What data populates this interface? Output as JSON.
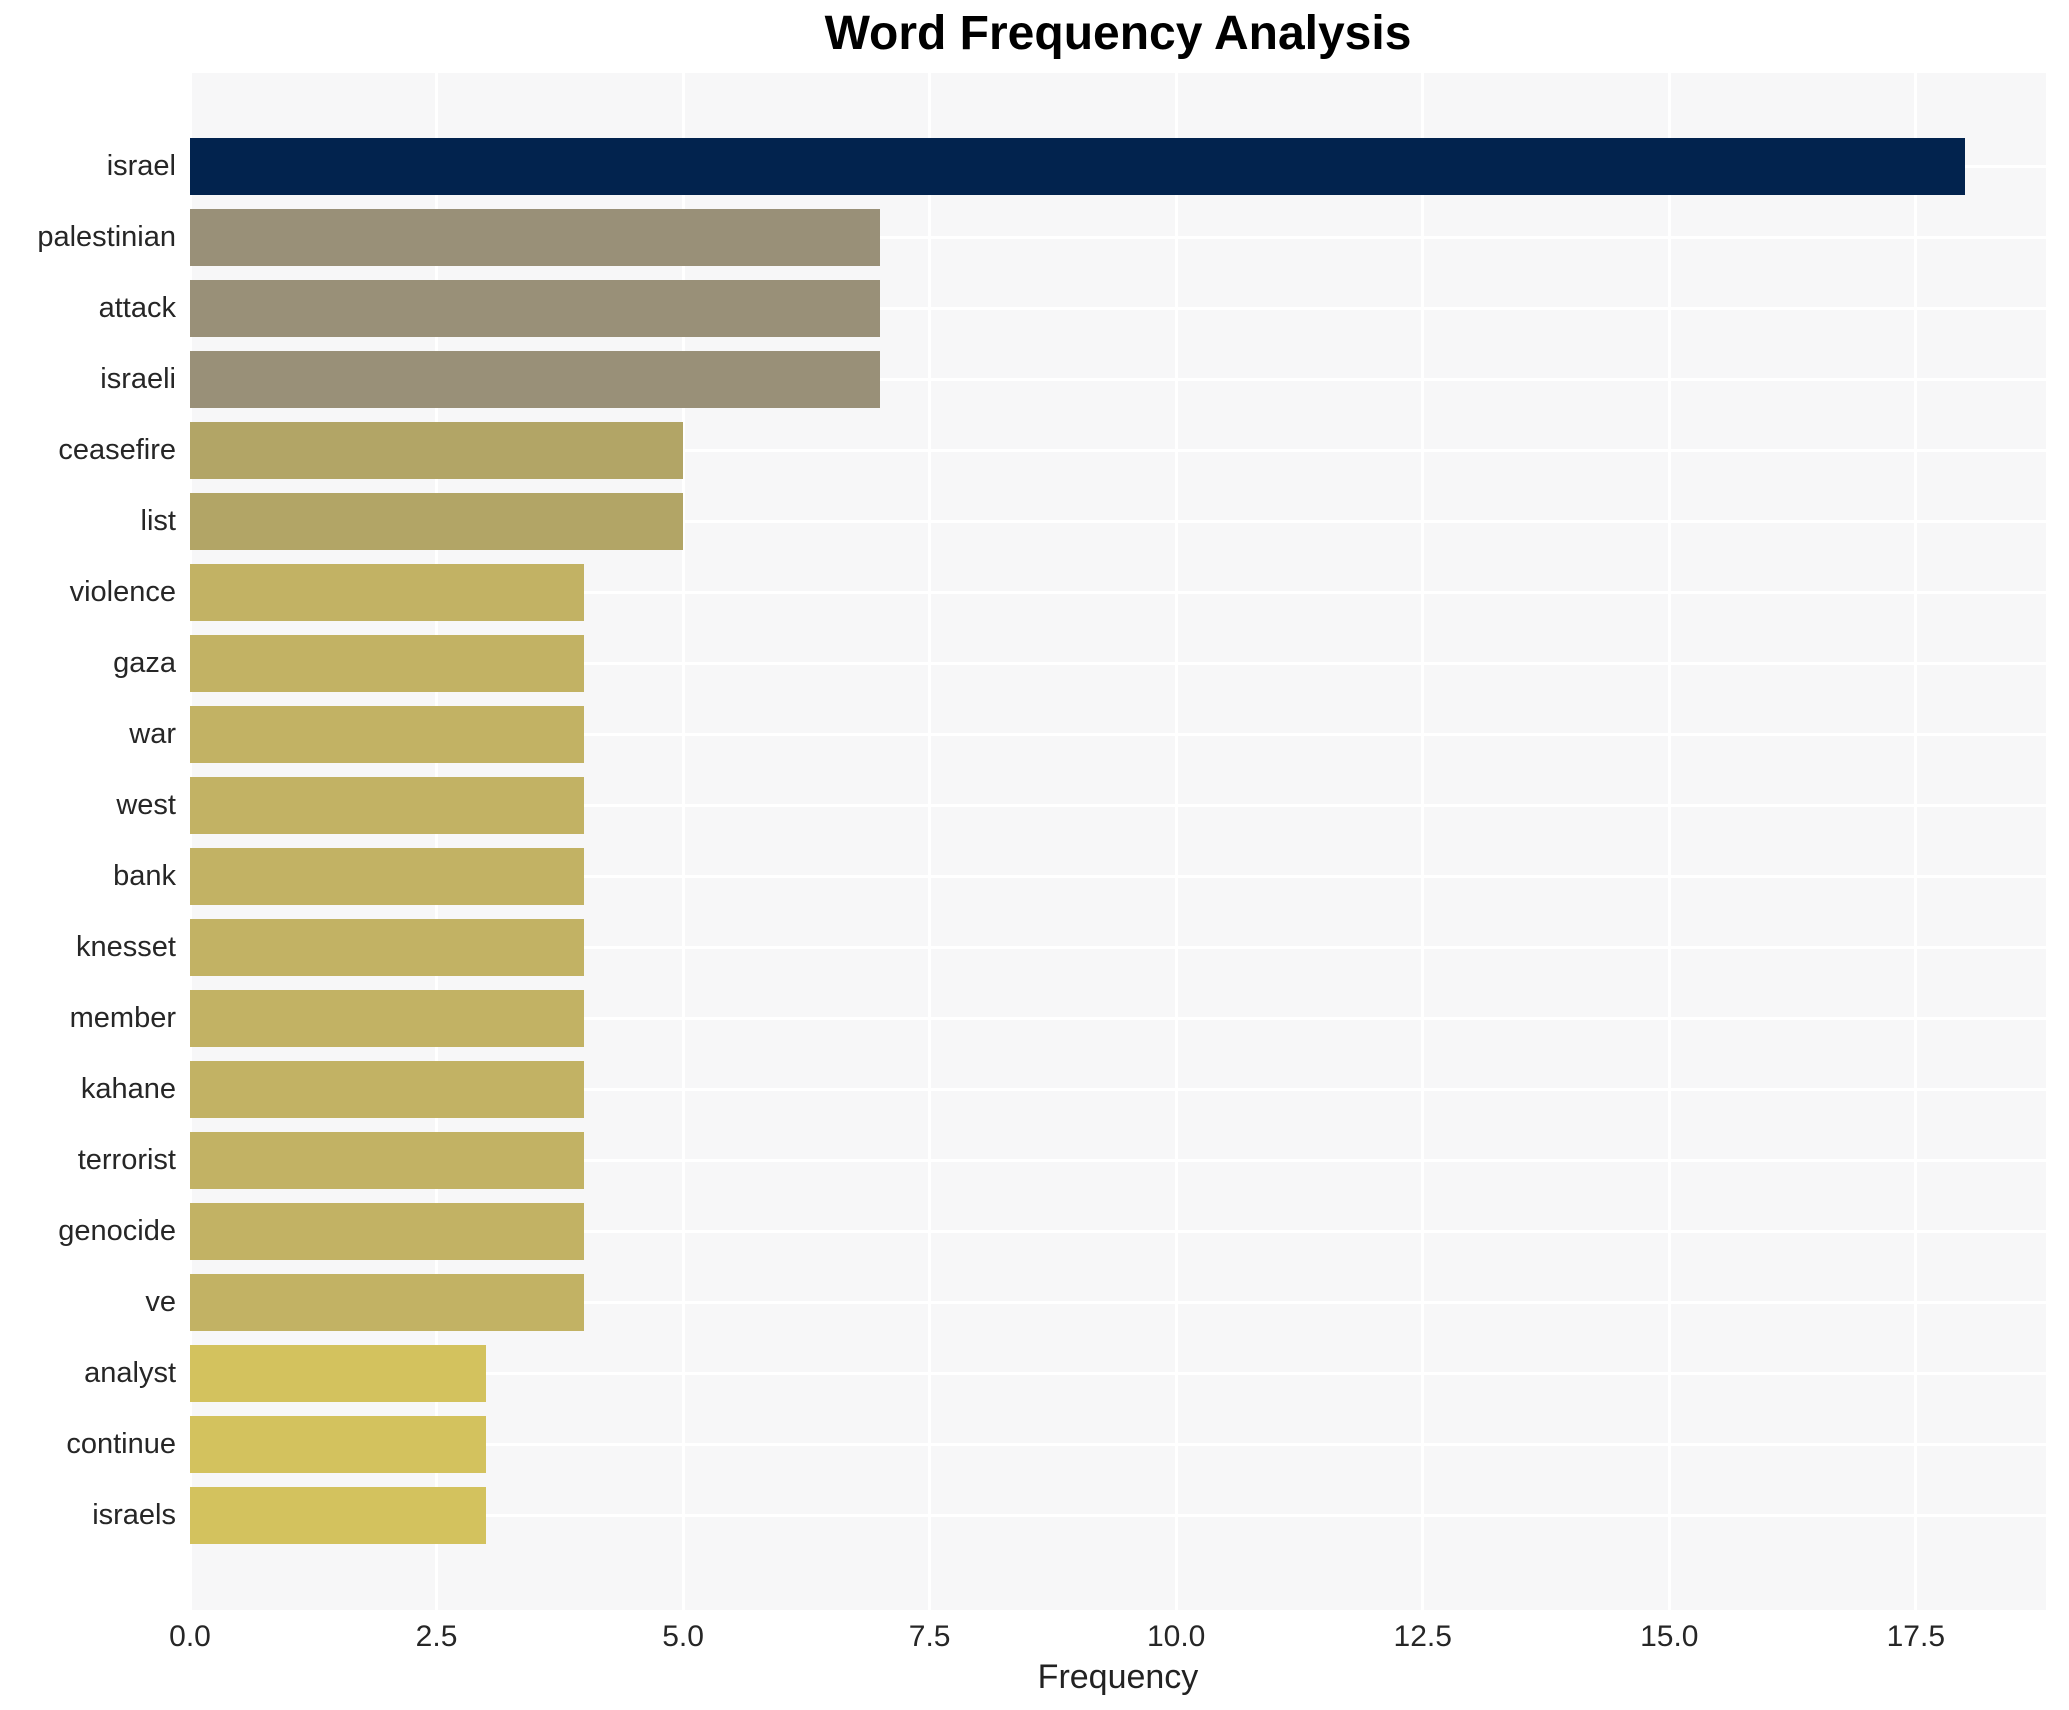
{
  "chart_data": {
    "type": "bar",
    "orientation": "horizontal",
    "title": "Word Frequency Analysis",
    "xlabel": "Frequency",
    "ylabel": "",
    "categories": [
      "israel",
      "palestinian",
      "attack",
      "israeli",
      "ceasefire",
      "list",
      "violence",
      "gaza",
      "war",
      "west",
      "bank",
      "knesset",
      "member",
      "kahane",
      "terrorist",
      "genocide",
      "ve",
      "analyst",
      "continue",
      "israels"
    ],
    "values": [
      18,
      7,
      7,
      7,
      5,
      5,
      4,
      4,
      4,
      4,
      4,
      4,
      4,
      4,
      4,
      4,
      4,
      3,
      3,
      3
    ],
    "bar_colors": [
      "#02234e",
      "#999078",
      "#999078",
      "#999078",
      "#b2a566",
      "#b2a566",
      "#c2b264",
      "#c2b264",
      "#c2b264",
      "#c2b264",
      "#c2b264",
      "#c2b264",
      "#c2b264",
      "#c2b264",
      "#c2b264",
      "#c2b264",
      "#c2b264",
      "#d3c25e",
      "#d3c25e",
      "#d3c25e"
    ],
    "xticks": [
      0.0,
      2.5,
      5.0,
      7.5,
      10.0,
      12.5,
      15.0,
      17.5
    ],
    "xtick_labels": [
      "0.0",
      "2.5",
      "5.0",
      "7.5",
      "10.0",
      "12.5",
      "15.0",
      "17.5"
    ],
    "xlim": [
      0,
      18.82
    ],
    "grid": true,
    "grid_color": "#ffffff",
    "panel_bg": "#f7f7f8",
    "legend": false,
    "title_color": "#000000",
    "tick_color": "#262626"
  }
}
